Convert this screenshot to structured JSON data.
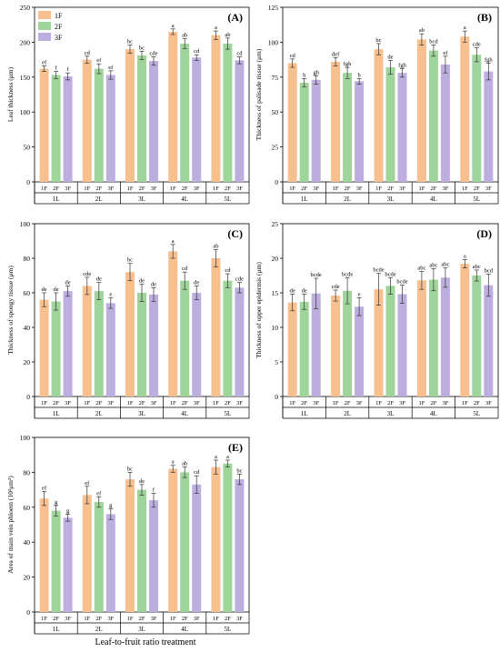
{
  "figure": {
    "xlabel": "Leaf-to-fruit ratio treatment",
    "legend": [
      "1F",
      "2F",
      "3F"
    ],
    "colors": {
      "1F": "#f9c08f",
      "2F": "#9fd49b",
      "3F": "#bcaede"
    },
    "group_labels": [
      "1L",
      "2L",
      "3L",
      "4L",
      "5L"
    ]
  },
  "chart_data": [
    {
      "panel": "(A)",
      "type": "bar",
      "ylabel": "Leaf thickness (μm)",
      "ylim": [
        0,
        250
      ],
      "yticks": [
        0,
        50,
        100,
        150,
        200,
        250
      ],
      "categories": [
        "1L",
        "2L",
        "3L",
        "4L",
        "5L"
      ],
      "series": [
        {
          "name": "1F",
          "values": [
            162,
            175,
            190,
            215,
            210
          ],
          "errors": [
            4,
            5,
            6,
            4,
            6
          ],
          "letters": [
            "ef",
            "cd",
            "bc",
            "a",
            "a"
          ]
        },
        {
          "name": "2F",
          "values": [
            153,
            162,
            181,
            198,
            198
          ],
          "errors": [
            5,
            7,
            6,
            7,
            8
          ],
          "letters": [
            "f",
            "ef",
            "bc",
            "ab",
            "ab"
          ]
        },
        {
          "name": "3F",
          "values": [
            151,
            153,
            173,
            178,
            174
          ],
          "errors": [
            5,
            6,
            6,
            4,
            5
          ],
          "letters": [
            "f",
            "ef",
            "cde",
            "cd",
            "cd"
          ]
        }
      ]
    },
    {
      "panel": "(B)",
      "type": "bar",
      "ylabel": "Thickness of palisade tissue (μm)",
      "ylim": [
        0,
        125
      ],
      "yticks": [
        0,
        25,
        50,
        75,
        100,
        125
      ],
      "categories": [
        "1L",
        "2L",
        "3L",
        "4L",
        "5L"
      ],
      "series": [
        {
          "name": "1F",
          "values": [
            85,
            86,
            95,
            102,
            104
          ],
          "errors": [
            3,
            3,
            4,
            4,
            4
          ],
          "letters": [
            "cd",
            "def",
            "bc",
            "ab",
            "a"
          ]
        },
        {
          "name": "2F",
          "values": [
            71,
            78,
            82,
            94,
            91
          ],
          "errors": [
            3,
            4,
            5,
            4,
            5
          ],
          "letters": [
            "h",
            "fgh",
            "de",
            "bcd",
            "cde"
          ]
        },
        {
          "name": "3F",
          "values": [
            73,
            72,
            78,
            84,
            79
          ],
          "errors": [
            3,
            2,
            3,
            6,
            6
          ],
          "letters": [
            "gh",
            "h",
            "fgh",
            "ef",
            "fgh"
          ]
        }
      ]
    },
    {
      "panel": "(C)",
      "type": "bar",
      "ylabel": "Thickness of spongy tissue (μm)",
      "ylim": [
        0,
        100
      ],
      "yticks": [
        0,
        20,
        40,
        60,
        80,
        100
      ],
      "categories": [
        "1L",
        "2L",
        "3L",
        "4L",
        "5L"
      ],
      "series": [
        {
          "name": "1F",
          "values": [
            56,
            64,
            72,
            84,
            80
          ],
          "errors": [
            4,
            5,
            5,
            4,
            5
          ],
          "letters": [
            "de",
            "cde",
            "bc",
            "a",
            "ab"
          ]
        },
        {
          "name": "2F",
          "values": [
            55,
            61,
            60,
            67,
            67
          ],
          "errors": [
            5,
            5,
            5,
            5,
            4
          ],
          "letters": [
            "de",
            "de",
            "de",
            "cd",
            "cd"
          ]
        },
        {
          "name": "3F",
          "values": [
            61,
            54,
            59,
            60,
            63
          ],
          "errors": [
            3,
            3,
            4,
            4,
            3
          ],
          "letters": [
            "de",
            "e",
            "de",
            "de",
            "cde"
          ]
        }
      ]
    },
    {
      "panel": "(D)",
      "type": "bar",
      "ylabel": "Thickness of upper epidermis (μm)",
      "ylim": [
        0,
        25
      ],
      "yticks": [
        0,
        5,
        10,
        15,
        20,
        25
      ],
      "categories": [
        "1L",
        "2L",
        "3L",
        "4L",
        "5L"
      ],
      "series": [
        {
          "name": "1F",
          "values": [
            13.6,
            14.6,
            15.5,
            16.8,
            19.2
          ],
          "errors": [
            1.2,
            0.8,
            2.3,
            1.3,
            0.6
          ],
          "letters": [
            "de",
            "cde",
            "bcde",
            "abc",
            "a"
          ]
        },
        {
          "name": "2F",
          "values": [
            13.7,
            15.3,
            16.0,
            16.9,
            17.5
          ],
          "errors": [
            1.1,
            1.9,
            1.2,
            1.6,
            0.8
          ],
          "letters": [
            "de",
            "bcde",
            "bcde",
            "abc",
            "abc"
          ]
        },
        {
          "name": "3F",
          "values": [
            14.9,
            13.0,
            14.8,
            17.2,
            16.1
          ],
          "errors": [
            2.2,
            1.3,
            1.3,
            1.4,
            1.6
          ],
          "letters": [
            "bcde",
            "e",
            "bcde",
            "abc",
            "bcd"
          ]
        }
      ]
    },
    {
      "panel": "(E)",
      "type": "bar",
      "ylabel": "Area of main vein phloem (10³μm²)",
      "ylim": [
        0,
        100
      ],
      "yticks": [
        0,
        20,
        40,
        60,
        80,
        100
      ],
      "categories": [
        "1L",
        "2L",
        "3L",
        "4L",
        "5L"
      ],
      "series": [
        {
          "name": "1F",
          "values": [
            65,
            67,
            76,
            82,
            83
          ],
          "errors": [
            4,
            5,
            4,
            2,
            4
          ],
          "letters": [
            "ef",
            "ef",
            "bc",
            "a",
            "a"
          ]
        },
        {
          "name": "2F",
          "values": [
            58,
            63,
            70,
            80,
            85
          ],
          "errors": [
            3,
            3,
            3,
            3,
            2
          ],
          "letters": [
            "g",
            "ef",
            "de",
            "ab",
            "a"
          ]
        },
        {
          "name": "3F",
          "values": [
            54,
            56,
            64,
            73,
            76
          ],
          "errors": [
            2,
            3,
            4,
            5,
            3
          ],
          "letters": [
            "g",
            "g",
            "f",
            "cd",
            "bc"
          ]
        }
      ]
    }
  ]
}
